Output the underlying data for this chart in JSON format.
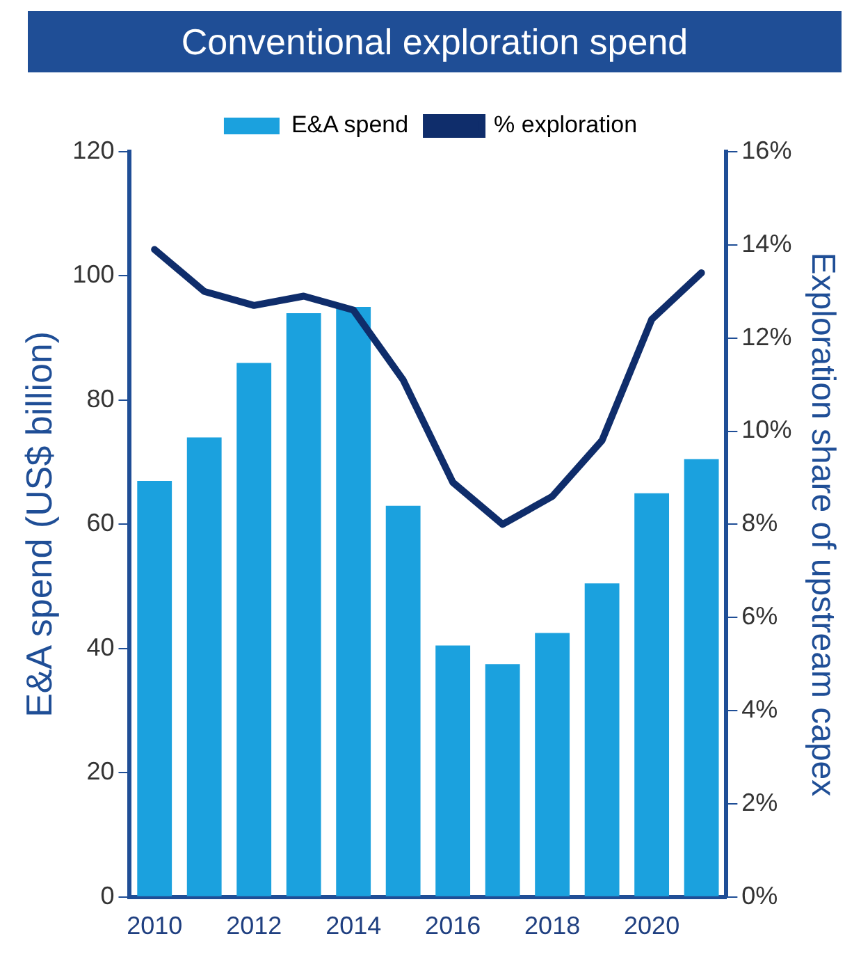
{
  "chart_data": {
    "type": "bar",
    "title": "Conventional exploration spend",
    "ylabel": "E&A spend (US$ billion)",
    "y2label": "Exploration share of upstream capex",
    "categories": [
      "2010",
      null,
      "2012",
      null,
      "2014",
      null,
      "2016",
      null,
      "2018",
      null,
      "2020",
      null
    ],
    "series": [
      {
        "name": "E&A spend",
        "color": "#1ba1de",
        "values": [
          67,
          74,
          86,
          94,
          95,
          63,
          40.5,
          37.5,
          42.5,
          50.5,
          65,
          70.5
        ]
      },
      {
        "name": "% exploration",
        "type": "line",
        "axis": "y2",
        "color": "#0f2d6b",
        "values": [
          13.9,
          13.0,
          12.7,
          12.9,
          12.6,
          11.1,
          8.9,
          8.0,
          8.6,
          9.8,
          12.4,
          13.4
        ]
      }
    ],
    "ylim": [
      0,
      120
    ],
    "yticks": [
      0,
      20,
      40,
      60,
      80,
      100,
      120
    ],
    "y2lim": [
      0,
      16
    ],
    "y2ticks": [
      {
        "value": 0,
        "label": "0%"
      },
      {
        "value": 2,
        "label": "2%"
      },
      {
        "value": 4,
        "label": "4%"
      },
      {
        "value": 6,
        "label": "6%"
      },
      {
        "value": 8,
        "label": "8%"
      },
      {
        "value": 10,
        "label": "10%"
      },
      {
        "value": 12,
        "label": "12%"
      },
      {
        "value": 14,
        "label": "14%"
      },
      {
        "value": 16,
        "label": "16%"
      }
    ],
    "legend": "top",
    "marker": "none",
    "line_style": "solid"
  }
}
